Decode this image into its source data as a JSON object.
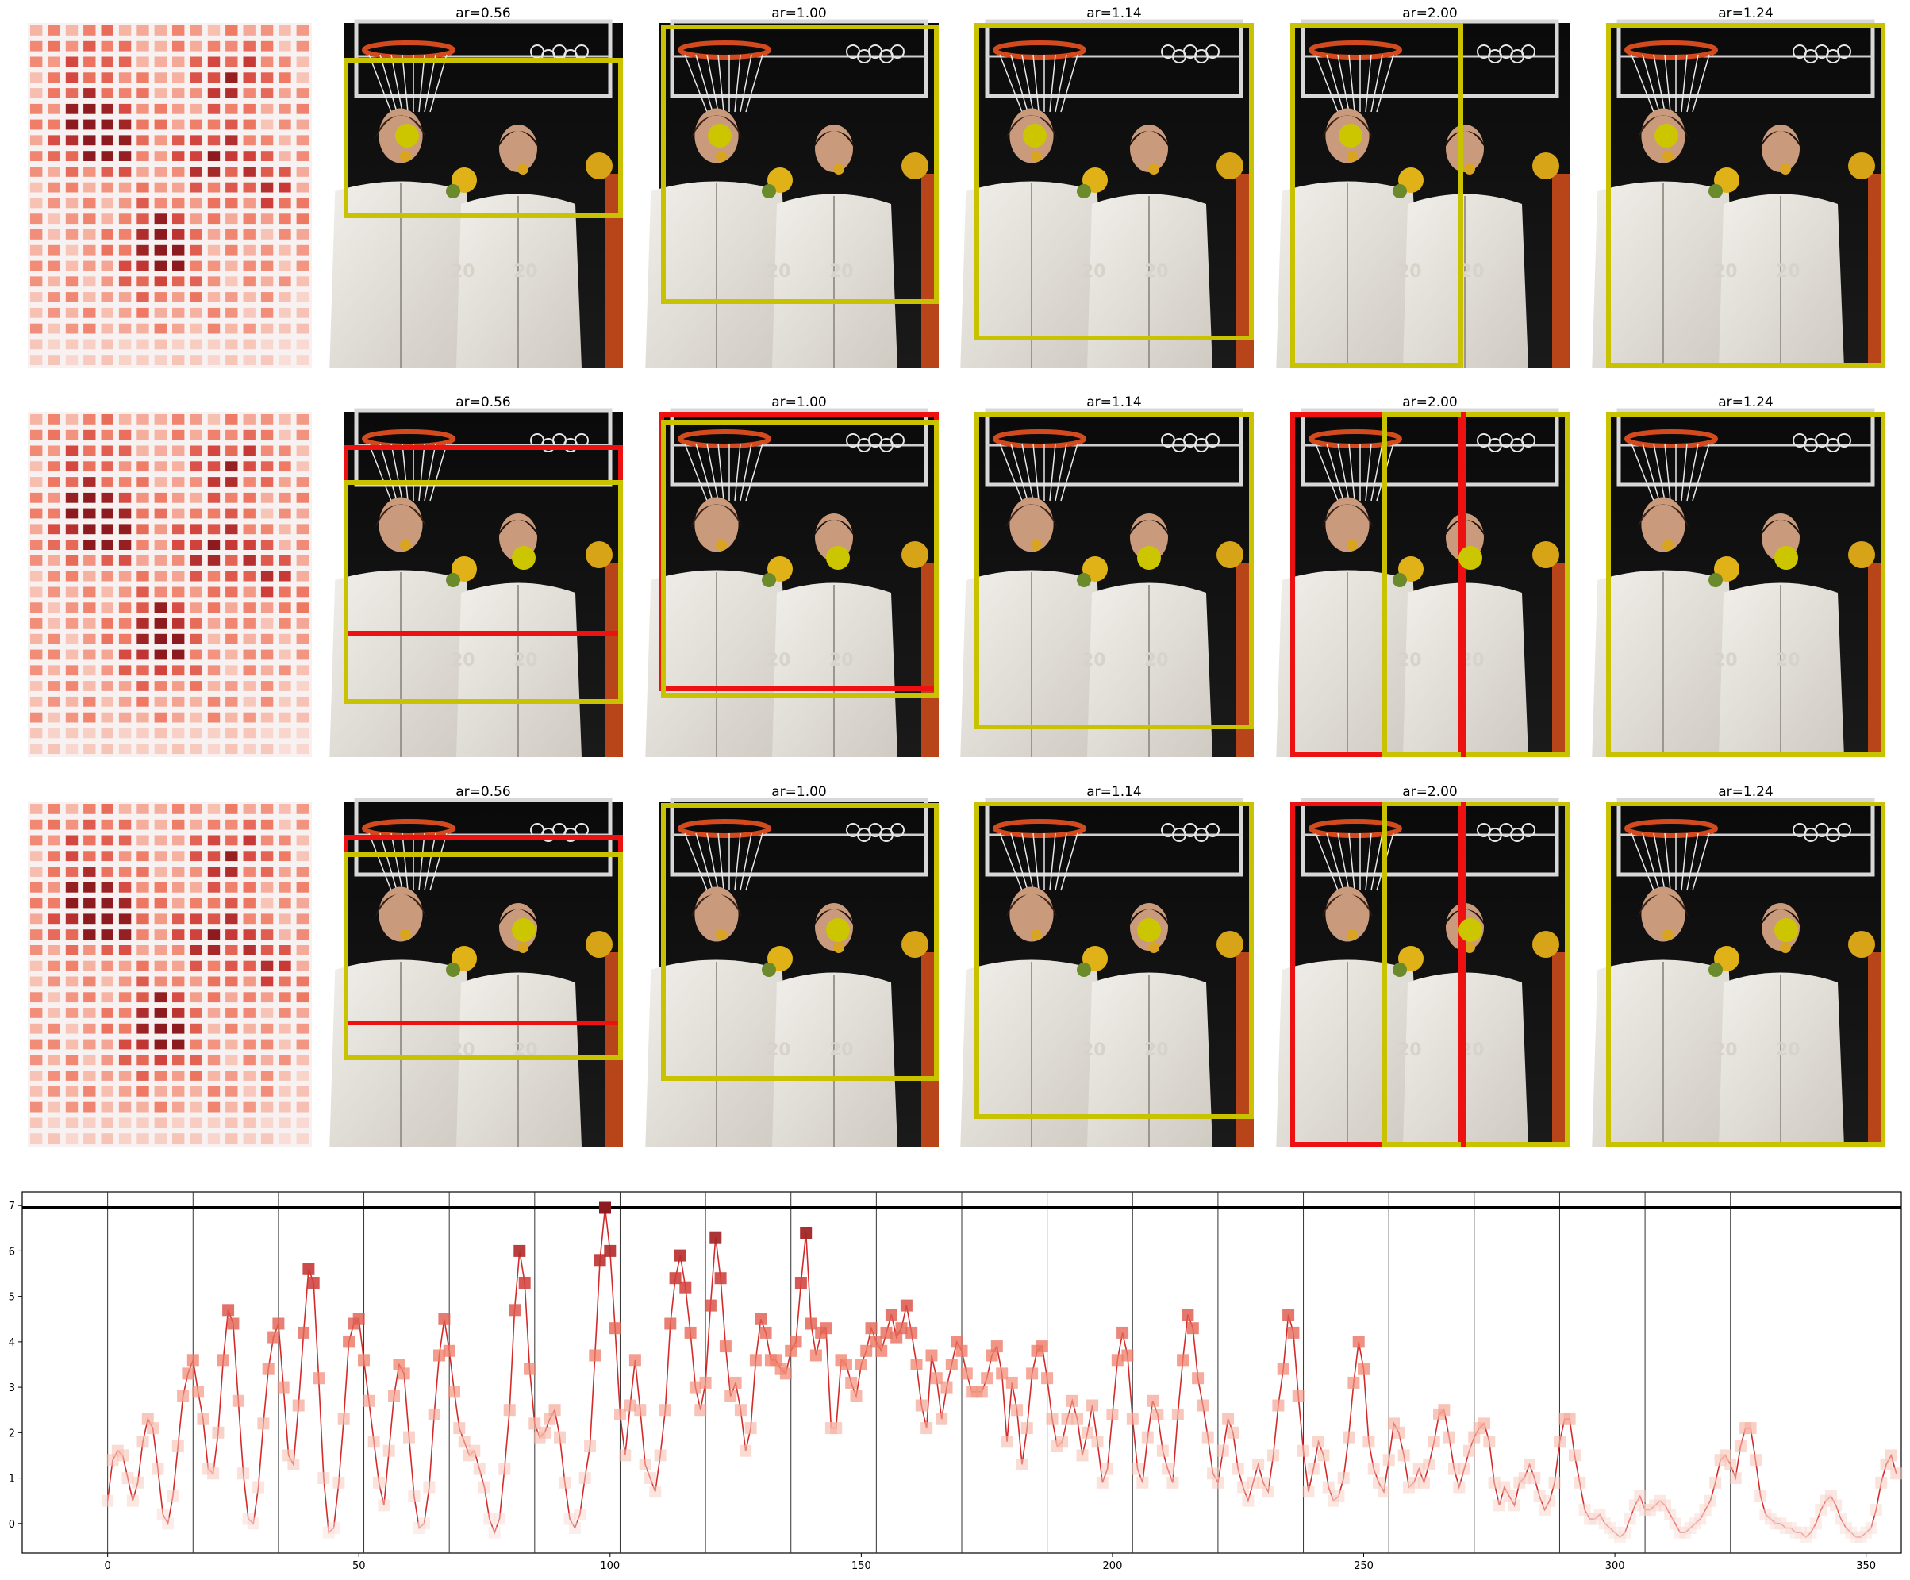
{
  "figure": {
    "panel_titles": [
      "ar=0.56",
      "ar=1.00",
      "ar=1.14",
      "ar=2.00",
      "ar=1.24"
    ],
    "rows": 3,
    "colors": {
      "proposal_box": "#c8c200",
      "reference_box": "#ee1111",
      "marker": "#ccc600",
      "heat_dark": "#8b1a1a",
      "line": "#d42a2a"
    }
  },
  "chart_data": {
    "type": "line",
    "title": "",
    "xlabel": "",
    "ylabel": "",
    "xlim": [
      -17,
      357
    ],
    "ylim": [
      -0.65,
      7.3
    ],
    "xticks": [
      0,
      50,
      100,
      150,
      200,
      250,
      300,
      350
    ],
    "yticks": [
      0,
      1,
      2,
      3,
      4,
      5,
      6,
      7
    ],
    "threshold": 6.95,
    "vlines": [
      0,
      17,
      34,
      51,
      68,
      85,
      102,
      119,
      136,
      153,
      170,
      187,
      204,
      221,
      238,
      255,
      272,
      289,
      306,
      323
    ],
    "series": [
      {
        "values": [
          0.5,
          1.4,
          1.6,
          1.5,
          1.0,
          0.5,
          0.9,
          1.8,
          2.3,
          2.1,
          1.2,
          0.2,
          0.0,
          0.6,
          1.7,
          2.8,
          3.3,
          3.6,
          2.9,
          2.3,
          1.2,
          1.1,
          2.0,
          3.6,
          4.7,
          4.4,
          2.7,
          1.1,
          0.1,
          0.0,
          0.8,
          2.2,
          3.4,
          4.1,
          4.4,
          3.0,
          1.5,
          1.3,
          2.6,
          4.2,
          5.6,
          5.3,
          3.2,
          1.0,
          -0.2,
          -0.1,
          0.9,
          2.3,
          4.0,
          4.4,
          4.5,
          3.6,
          2.7,
          1.8,
          0.9,
          0.4,
          1.6,
          2.8,
          3.5,
          3.3,
          1.9,
          0.6,
          -0.1,
          0.0,
          0.8,
          2.4,
          3.7,
          4.5,
          3.8,
          2.9,
          2.1,
          1.8,
          1.5,
          1.6,
          1.2,
          0.8,
          0.1,
          -0.2,
          0.1,
          1.2,
          2.5,
          4.7,
          6.0,
          5.3,
          3.4,
          2.2,
          1.9,
          2.0,
          2.3,
          2.5,
          1.9,
          0.9,
          0.1,
          -0.1,
          0.2,
          1.0,
          1.7,
          3.7,
          5.8,
          6.95,
          6.0,
          4.3,
          2.4,
          1.5,
          2.6,
          3.6,
          2.5,
          1.3,
          1.0,
          0.7,
          1.5,
          2.5,
          4.4,
          5.4,
          5.9,
          5.2,
          4.2,
          3.0,
          2.5,
          3.1,
          4.8,
          6.3,
          5.4,
          3.9,
          2.8,
          3.1,
          2.5,
          1.6,
          2.1,
          3.6,
          4.5,
          4.2,
          3.6,
          3.6,
          3.4,
          3.3,
          3.8,
          4.0,
          5.3,
          6.4,
          4.4,
          3.7,
          4.2,
          4.3,
          2.1,
          2.1,
          3.6,
          3.5,
          3.1,
          2.8,
          3.5,
          3.8,
          4.3,
          4.0,
          3.8,
          4.2,
          4.6,
          4.1,
          4.3,
          4.8,
          4.2,
          3.5,
          2.6,
          2.1,
          3.7,
          3.2,
          2.3,
          3.0,
          3.5,
          4.0,
          3.8,
          3.3,
          2.9,
          2.9,
          2.9,
          3.2,
          3.7,
          3.9,
          3.3,
          1.8,
          3.1,
          2.5,
          1.3,
          2.1,
          3.3,
          3.8,
          3.9,
          3.2,
          2.3,
          1.7,
          1.8,
          2.3,
          2.7,
          2.3,
          1.5,
          2.0,
          2.6,
          1.8,
          0.9,
          1.2,
          2.4,
          3.6,
          4.2,
          3.7,
          2.3,
          1.2,
          0.9,
          1.9,
          2.7,
          2.4,
          1.6,
          1.2,
          0.9,
          2.4,
          3.6,
          4.6,
          4.3,
          3.2,
          2.6,
          1.9,
          1.1,
          0.9,
          1.6,
          2.3,
          2.0,
          1.2,
          0.8,
          0.5,
          0.9,
          1.3,
          0.9,
          0.7,
          1.5,
          2.6,
          3.4,
          4.6,
          4.2,
          2.8,
          1.6,
          0.7,
          1.2,
          1.8,
          1.5,
          0.8,
          0.5,
          0.6,
          1.0,
          1.9,
          3.1,
          4.0,
          3.4,
          1.8,
          1.2,
          0.9,
          0.7,
          1.4,
          2.2,
          2.0,
          1.5,
          0.8,
          0.9,
          1.2,
          0.9,
          1.3,
          1.8,
          2.4,
          2.5,
          1.9,
          1.2,
          0.8,
          1.2,
          1.6,
          1.9,
          2.1,
          2.2,
          1.8,
          0.9,
          0.4,
          0.8,
          0.6,
          0.4,
          0.9,
          1.0,
          1.3,
          1.0,
          0.6,
          0.3,
          0.5,
          0.9,
          1.8,
          2.3,
          2.3,
          1.5,
          0.9,
          0.3,
          0.1,
          0.1,
          0.2,
          0.0,
          -0.1,
          -0.2,
          -0.3,
          -0.2,
          0.1,
          0.4,
          0.6,
          0.3,
          0.3,
          0.4,
          0.5,
          0.4,
          0.2,
          0.0,
          -0.2,
          -0.2,
          -0.1,
          0.0,
          0.1,
          0.3,
          0.5,
          0.9,
          1.4,
          1.5,
          1.3,
          1.0,
          1.7,
          2.1,
          2.1,
          1.4,
          0.6,
          0.2,
          0.1,
          0.0,
          0.0,
          -0.1,
          -0.1,
          -0.2,
          -0.2,
          -0.3,
          -0.2,
          0.0,
          0.3,
          0.5,
          0.6,
          0.4,
          0.1,
          -0.1,
          -0.2,
          -0.3,
          -0.3,
          -0.2,
          -0.1,
          0.3,
          0.9,
          1.3,
          1.5,
          1.1
        ]
      }
    ]
  }
}
